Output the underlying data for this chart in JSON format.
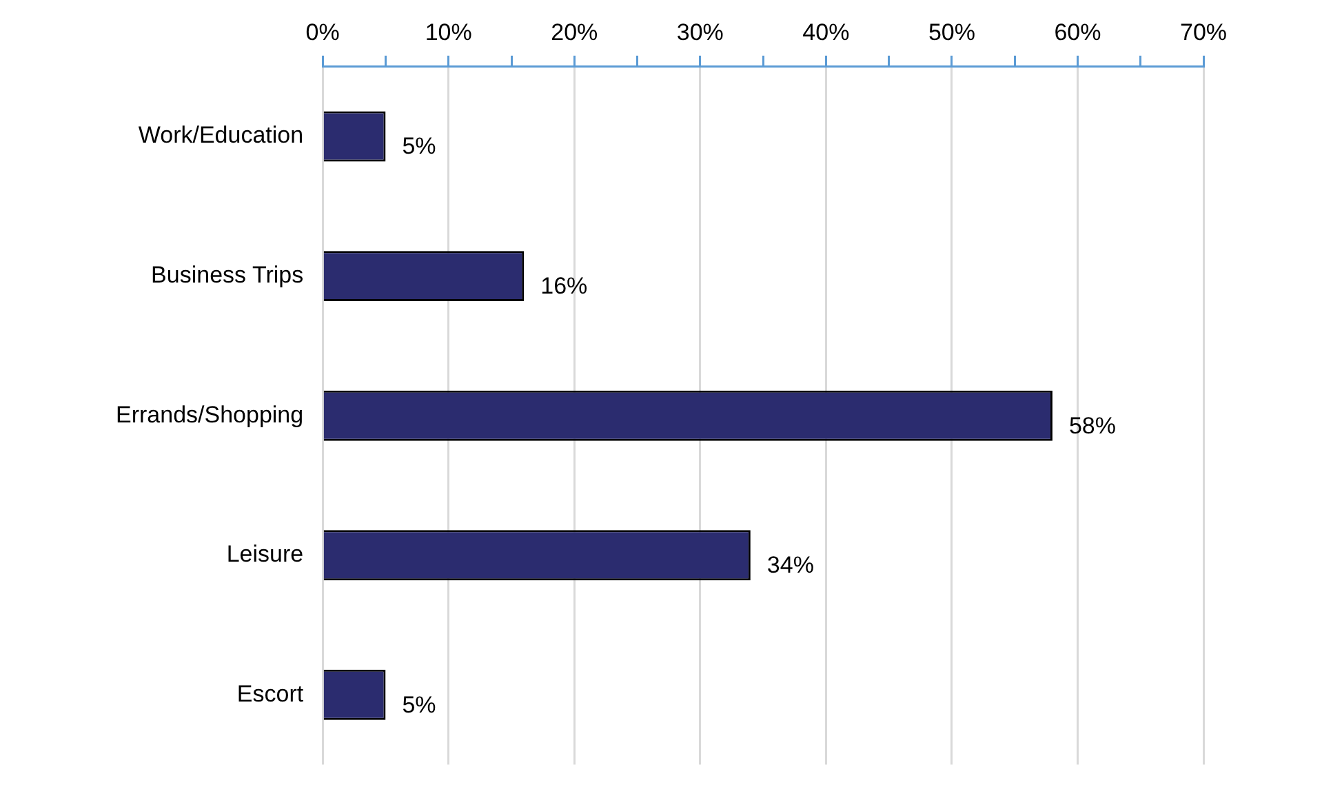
{
  "chart_data": {
    "type": "bar",
    "orientation": "horizontal",
    "categories": [
      "Work/Education",
      "Business Trips",
      "Errands/Shopping",
      "Leisure",
      "Escort"
    ],
    "values": [
      5,
      16,
      58,
      34,
      5
    ],
    "value_labels": [
      "5%",
      "16%",
      "58%",
      "34%",
      "5%"
    ],
    "color": "#2b2c6f",
    "xlim": [
      0,
      70
    ],
    "xticks": [
      {
        "value": 0,
        "label": "0%"
      },
      {
        "value": 5,
        "label": null
      },
      {
        "value": 10,
        "label": "10%"
      },
      {
        "value": 15,
        "label": null
      },
      {
        "value": 20,
        "label": "20%"
      },
      {
        "value": 25,
        "label": null
      },
      {
        "value": 30,
        "label": "30%"
      },
      {
        "value": 35,
        "label": null
      },
      {
        "value": 40,
        "label": "40%"
      },
      {
        "value": 45,
        "label": null
      },
      {
        "value": 50,
        "label": "50%"
      },
      {
        "value": 55,
        "label": null
      },
      {
        "value": 60,
        "label": "60%"
      },
      {
        "value": 65,
        "label": null
      },
      {
        "value": 70,
        "label": "70%"
      }
    ],
    "grid": "x",
    "legend": false
  }
}
